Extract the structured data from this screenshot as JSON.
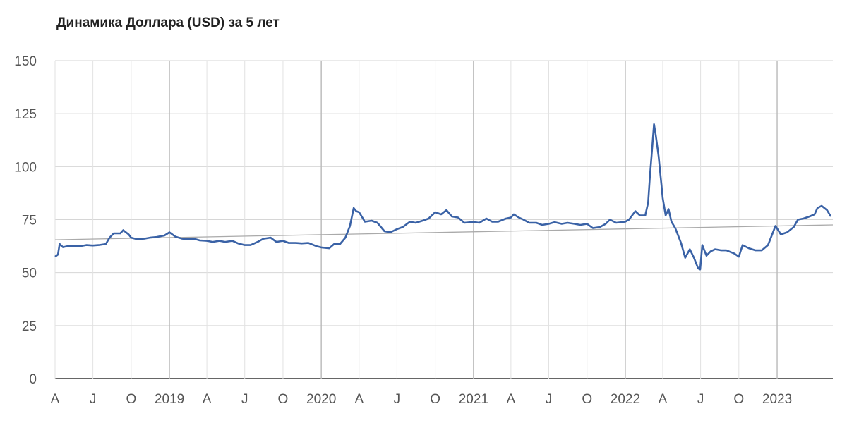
{
  "chart_data": {
    "type": "line",
    "title": "Динамика Доллара (USD) за 5 лет",
    "xlabel": "",
    "ylabel": "",
    "ylim": [
      0,
      150
    ],
    "xlim": [
      "2018-04-01",
      "2023-05-15"
    ],
    "y_ticks": [
      0,
      25,
      50,
      75,
      100,
      125,
      150
    ],
    "x_ticks": [
      {
        "date": "2018-04-01",
        "label": "A"
      },
      {
        "date": "2018-07-01",
        "label": "J"
      },
      {
        "date": "2018-10-01",
        "label": "O"
      },
      {
        "date": "2019-01-01",
        "label": "2019"
      },
      {
        "date": "2019-04-01",
        "label": "A"
      },
      {
        "date": "2019-07-01",
        "label": "J"
      },
      {
        "date": "2019-10-01",
        "label": "O"
      },
      {
        "date": "2020-01-01",
        "label": "2020"
      },
      {
        "date": "2020-04-01",
        "label": "A"
      },
      {
        "date": "2020-07-01",
        "label": "J"
      },
      {
        "date": "2020-10-01",
        "label": "O"
      },
      {
        "date": "2021-01-01",
        "label": "2021"
      },
      {
        "date": "2021-04-01",
        "label": "A"
      },
      {
        "date": "2021-07-01",
        "label": "J"
      },
      {
        "date": "2021-10-01",
        "label": "O"
      },
      {
        "date": "2022-01-01",
        "label": "2022"
      },
      {
        "date": "2022-04-01",
        "label": "A"
      },
      {
        "date": "2022-07-01",
        "label": "J"
      },
      {
        "date": "2022-10-01",
        "label": "O"
      },
      {
        "date": "2023-01-01",
        "label": "2023"
      }
    ],
    "grid": true,
    "series": [
      {
        "color": "#3a62a6",
        "points": [
          [
            "2018-04-01",
            57.5
          ],
          [
            "2018-04-08",
            58.5
          ],
          [
            "2018-04-12",
            63.5
          ],
          [
            "2018-04-20",
            62.0
          ],
          [
            "2018-05-01",
            62.5
          ],
          [
            "2018-05-15",
            62.5
          ],
          [
            "2018-06-01",
            62.5
          ],
          [
            "2018-06-15",
            63.0
          ],
          [
            "2018-07-01",
            62.8
          ],
          [
            "2018-07-15",
            63.0
          ],
          [
            "2018-08-01",
            63.5
          ],
          [
            "2018-08-10",
            66.5
          ],
          [
            "2018-08-20",
            68.5
          ],
          [
            "2018-09-05",
            68.5
          ],
          [
            "2018-09-12",
            70.0
          ],
          [
            "2018-09-25",
            68.0
          ],
          [
            "2018-10-01",
            66.5
          ],
          [
            "2018-10-15",
            65.8
          ],
          [
            "2018-11-01",
            66.0
          ],
          [
            "2018-11-15",
            66.5
          ],
          [
            "2018-12-01",
            66.8
          ],
          [
            "2018-12-20",
            67.5
          ],
          [
            "2019-01-01",
            69.0
          ],
          [
            "2019-01-15",
            67.0
          ],
          [
            "2019-02-01",
            66.0
          ],
          [
            "2019-02-15",
            65.8
          ],
          [
            "2019-03-01",
            66.0
          ],
          [
            "2019-03-15",
            65.2
          ],
          [
            "2019-04-01",
            65.0
          ],
          [
            "2019-04-15",
            64.5
          ],
          [
            "2019-05-01",
            65.0
          ],
          [
            "2019-05-15",
            64.5
          ],
          [
            "2019-06-01",
            65.0
          ],
          [
            "2019-06-15",
            63.8
          ],
          [
            "2019-07-01",
            63.0
          ],
          [
            "2019-07-15",
            63.0
          ],
          [
            "2019-08-01",
            64.5
          ],
          [
            "2019-08-15",
            66.0
          ],
          [
            "2019-09-01",
            66.5
          ],
          [
            "2019-09-15",
            64.5
          ],
          [
            "2019-10-01",
            65.0
          ],
          [
            "2019-10-15",
            64.0
          ],
          [
            "2019-11-01",
            64.0
          ],
          [
            "2019-11-15",
            63.8
          ],
          [
            "2019-12-01",
            64.0
          ],
          [
            "2019-12-20",
            62.5
          ],
          [
            "2020-01-01",
            61.9
          ],
          [
            "2020-01-20",
            61.5
          ],
          [
            "2020-02-01",
            63.5
          ],
          [
            "2020-02-15",
            63.5
          ],
          [
            "2020-02-28",
            66.5
          ],
          [
            "2020-03-10",
            72.0
          ],
          [
            "2020-03-19",
            80.5
          ],
          [
            "2020-03-25",
            79.0
          ],
          [
            "2020-04-01",
            78.5
          ],
          [
            "2020-04-15",
            74.0
          ],
          [
            "2020-05-01",
            74.5
          ],
          [
            "2020-05-15",
            73.5
          ],
          [
            "2020-06-01",
            69.5
          ],
          [
            "2020-06-15",
            69.0
          ],
          [
            "2020-07-01",
            70.5
          ],
          [
            "2020-07-15",
            71.5
          ],
          [
            "2020-08-01",
            74.0
          ],
          [
            "2020-08-15",
            73.5
          ],
          [
            "2020-09-01",
            74.5
          ],
          [
            "2020-09-15",
            75.5
          ],
          [
            "2020-10-01",
            78.5
          ],
          [
            "2020-10-15",
            77.5
          ],
          [
            "2020-10-28",
            79.5
          ],
          [
            "2020-11-10",
            76.5
          ],
          [
            "2020-11-25",
            76.0
          ],
          [
            "2020-12-10",
            73.5
          ],
          [
            "2021-01-01",
            73.9
          ],
          [
            "2021-01-15",
            73.5
          ],
          [
            "2021-02-01",
            75.5
          ],
          [
            "2021-02-15",
            74.0
          ],
          [
            "2021-03-01",
            74.0
          ],
          [
            "2021-03-20",
            75.5
          ],
          [
            "2021-04-01",
            76.0
          ],
          [
            "2021-04-08",
            77.5
          ],
          [
            "2021-04-20",
            76.0
          ],
          [
            "2021-05-01",
            75.0
          ],
          [
            "2021-05-15",
            73.5
          ],
          [
            "2021-06-01",
            73.5
          ],
          [
            "2021-06-15",
            72.5
          ],
          [
            "2021-07-01",
            73.0
          ],
          [
            "2021-07-15",
            73.8
          ],
          [
            "2021-08-01",
            73.0
          ],
          [
            "2021-08-15",
            73.5
          ],
          [
            "2021-09-01",
            73.0
          ],
          [
            "2021-09-15",
            72.5
          ],
          [
            "2021-10-01",
            73.0
          ],
          [
            "2021-10-15",
            71.0
          ],
          [
            "2021-11-01",
            71.5
          ],
          [
            "2021-11-15",
            73.0
          ],
          [
            "2021-11-25",
            75.0
          ],
          [
            "2021-12-10",
            73.5
          ],
          [
            "2022-01-01",
            74.0
          ],
          [
            "2022-01-10",
            75.0
          ],
          [
            "2022-01-25",
            79.0
          ],
          [
            "2022-02-05",
            77.0
          ],
          [
            "2022-02-18",
            77.0
          ],
          [
            "2022-02-25",
            83.0
          ],
          [
            "2022-03-01",
            95.0
          ],
          [
            "2022-03-05",
            105.0
          ],
          [
            "2022-03-11",
            120.0
          ],
          [
            "2022-03-15",
            115.0
          ],
          [
            "2022-03-22",
            105.0
          ],
          [
            "2022-04-01",
            85.0
          ],
          [
            "2022-04-08",
            77.0
          ],
          [
            "2022-04-15",
            80.0
          ],
          [
            "2022-04-22",
            74.0
          ],
          [
            "2022-05-01",
            71.0
          ],
          [
            "2022-05-15",
            64.0
          ],
          [
            "2022-05-25",
            57.0
          ],
          [
            "2022-06-05",
            61.0
          ],
          [
            "2022-06-15",
            57.0
          ],
          [
            "2022-06-25",
            52.0
          ],
          [
            "2022-06-30",
            51.5
          ],
          [
            "2022-07-05",
            63.0
          ],
          [
            "2022-07-15",
            58.0
          ],
          [
            "2022-07-25",
            60.0
          ],
          [
            "2022-08-05",
            61.0
          ],
          [
            "2022-08-20",
            60.5
          ],
          [
            "2022-09-01",
            60.5
          ],
          [
            "2022-09-20",
            59.0
          ],
          [
            "2022-10-01",
            57.5
          ],
          [
            "2022-10-10",
            63.0
          ],
          [
            "2022-10-25",
            61.5
          ],
          [
            "2022-11-10",
            60.5
          ],
          [
            "2022-11-25",
            60.5
          ],
          [
            "2022-12-10",
            63.0
          ],
          [
            "2022-12-20",
            68.0
          ],
          [
            "2022-12-28",
            72.0
          ],
          [
            "2023-01-10",
            68.0
          ],
          [
            "2023-01-25",
            69.0
          ],
          [
            "2023-02-10",
            71.5
          ],
          [
            "2023-02-20",
            75.0
          ],
          [
            "2023-03-05",
            75.5
          ],
          [
            "2023-03-20",
            76.5
          ],
          [
            "2023-04-01",
            77.5
          ],
          [
            "2023-04-08",
            80.5
          ],
          [
            "2023-04-18",
            81.5
          ],
          [
            "2023-05-01",
            79.5
          ],
          [
            "2023-05-10",
            76.5
          ]
        ]
      },
      {
        "color": "#aaaaaa",
        "points": [
          [
            "2018-04-01",
            65.5
          ],
          [
            "2023-05-15",
            72.5
          ]
        ]
      }
    ]
  }
}
